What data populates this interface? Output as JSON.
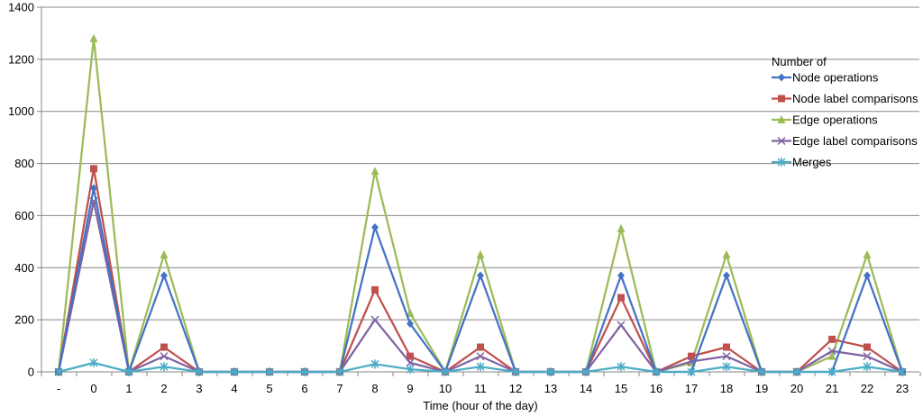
{
  "chart_data": {
    "type": "line",
    "xlabel": "Time (hour of the day)",
    "ylabel": "",
    "ylim": [
      0,
      1400
    ],
    "yticks": [
      0,
      200,
      400,
      600,
      800,
      1000,
      1200,
      1400
    ],
    "grid": "horizontal",
    "legend_title": "Number of",
    "legend_position": "right",
    "categories": [
      "-",
      "0",
      "1",
      "2",
      "3",
      "4",
      "5",
      "6",
      "7",
      "8",
      "9",
      "10",
      "11",
      "12",
      "13",
      "14",
      "15",
      "16",
      "17",
      "18",
      "19",
      "20",
      "21",
      "22",
      "23"
    ],
    "series": [
      {
        "name": "Node operations",
        "color": "#4472C4",
        "marker": "diamond",
        "values": [
          0,
          705,
          0,
          370,
          0,
          0,
          0,
          0,
          0,
          555,
          185,
          0,
          370,
          0,
          0,
          0,
          370,
          0,
          0,
          370,
          0,
          0,
          0,
          370,
          0
        ]
      },
      {
        "name": "Node label comparisons",
        "color": "#C0504D",
        "marker": "square",
        "values": [
          0,
          780,
          0,
          95,
          0,
          0,
          0,
          0,
          0,
          315,
          60,
          0,
          95,
          0,
          0,
          0,
          285,
          0,
          60,
          95,
          0,
          0,
          125,
          95,
          0
        ]
      },
      {
        "name": "Edge operations",
        "color": "#9BBB59",
        "marker": "triangle",
        "values": [
          0,
          1280,
          0,
          450,
          0,
          0,
          0,
          0,
          0,
          770,
          225,
          0,
          450,
          0,
          0,
          0,
          550,
          0,
          35,
          450,
          0,
          0,
          60,
          450,
          0
        ]
      },
      {
        "name": "Edge label comparisons",
        "color": "#8064A2",
        "marker": "x",
        "values": [
          0,
          655,
          0,
          60,
          0,
          0,
          0,
          0,
          0,
          200,
          35,
          0,
          60,
          0,
          0,
          0,
          180,
          0,
          40,
          60,
          0,
          0,
          80,
          60,
          0
        ]
      },
      {
        "name": "Merges",
        "color": "#4BACC6",
        "marker": "star",
        "values": [
          0,
          35,
          0,
          20,
          0,
          0,
          0,
          0,
          0,
          30,
          10,
          0,
          20,
          0,
          0,
          0,
          20,
          0,
          0,
          20,
          0,
          0,
          0,
          20,
          0
        ]
      }
    ]
  }
}
